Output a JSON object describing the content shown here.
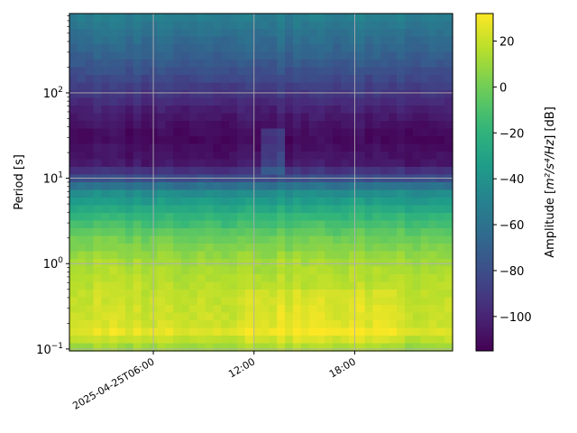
{
  "chart_data": {
    "type": "heatmap",
    "title": "",
    "xlabel": "",
    "ylabel": "Period [s]",
    "y_scale": "log",
    "ylim": [
      0.095,
      850
    ],
    "xlim": [
      "2025-04-25T01:00",
      "2025-04-25T23:50"
    ],
    "x_ticks": [
      {
        "time": "2025-04-25T06:00",
        "label": "2025-04-25T06:00"
      },
      {
        "time": "2025-04-25T12:00",
        "label": "12:00"
      },
      {
        "time": "2025-04-25T18:00",
        "label": "18:00"
      }
    ],
    "y_ticks": [
      {
        "value": 0.1,
        "base": "10",
        "exp": "−1"
      },
      {
        "value": 1,
        "base": "10",
        "exp": "0"
      },
      {
        "value": 10,
        "base": "10",
        "exp": "1"
      },
      {
        "value": 100,
        "base": "10",
        "exp": "2"
      }
    ],
    "grid": true,
    "colorbar": {
      "label_prefix": "Amplitude [",
      "label_math": "m²/s⁴/Hz",
      "label_suffix": "] [dB]",
      "range": [
        -115,
        32
      ],
      "colormap": "viridis",
      "ticks": [
        20,
        0,
        -20,
        -40,
        -60,
        -80,
        -100
      ],
      "tick_labels": [
        "20",
        "0",
        "−20",
        "−40",
        "−60",
        "−80",
        "−100"
      ]
    },
    "amplitude_profile_db": [
      {
        "period": 850,
        "db": -50
      },
      {
        "period": 550,
        "db": -58
      },
      {
        "period": 300,
        "db": -68
      },
      {
        "period": 150,
        "db": -82
      },
      {
        "period": 70,
        "db": -100
      },
      {
        "period": 30,
        "db": -112
      },
      {
        "period": 15,
        "db": -105
      },
      {
        "period": 10,
        "db": -80
      },
      {
        "period": 7,
        "db": -45
      },
      {
        "period": 4,
        "db": -22
      },
      {
        "period": 2,
        "db": 0
      },
      {
        "period": 1,
        "db": 13
      },
      {
        "period": 0.4,
        "db": 20
      },
      {
        "period": 0.2,
        "db": 22
      },
      {
        "period": 0.15,
        "db": 28
      },
      {
        "period": 0.12,
        "db": 15
      },
      {
        "period": 0.095,
        "db": 8
      }
    ],
    "annotation": "brief long-period energy increase near 12:00 between 10 s and 40 s"
  }
}
